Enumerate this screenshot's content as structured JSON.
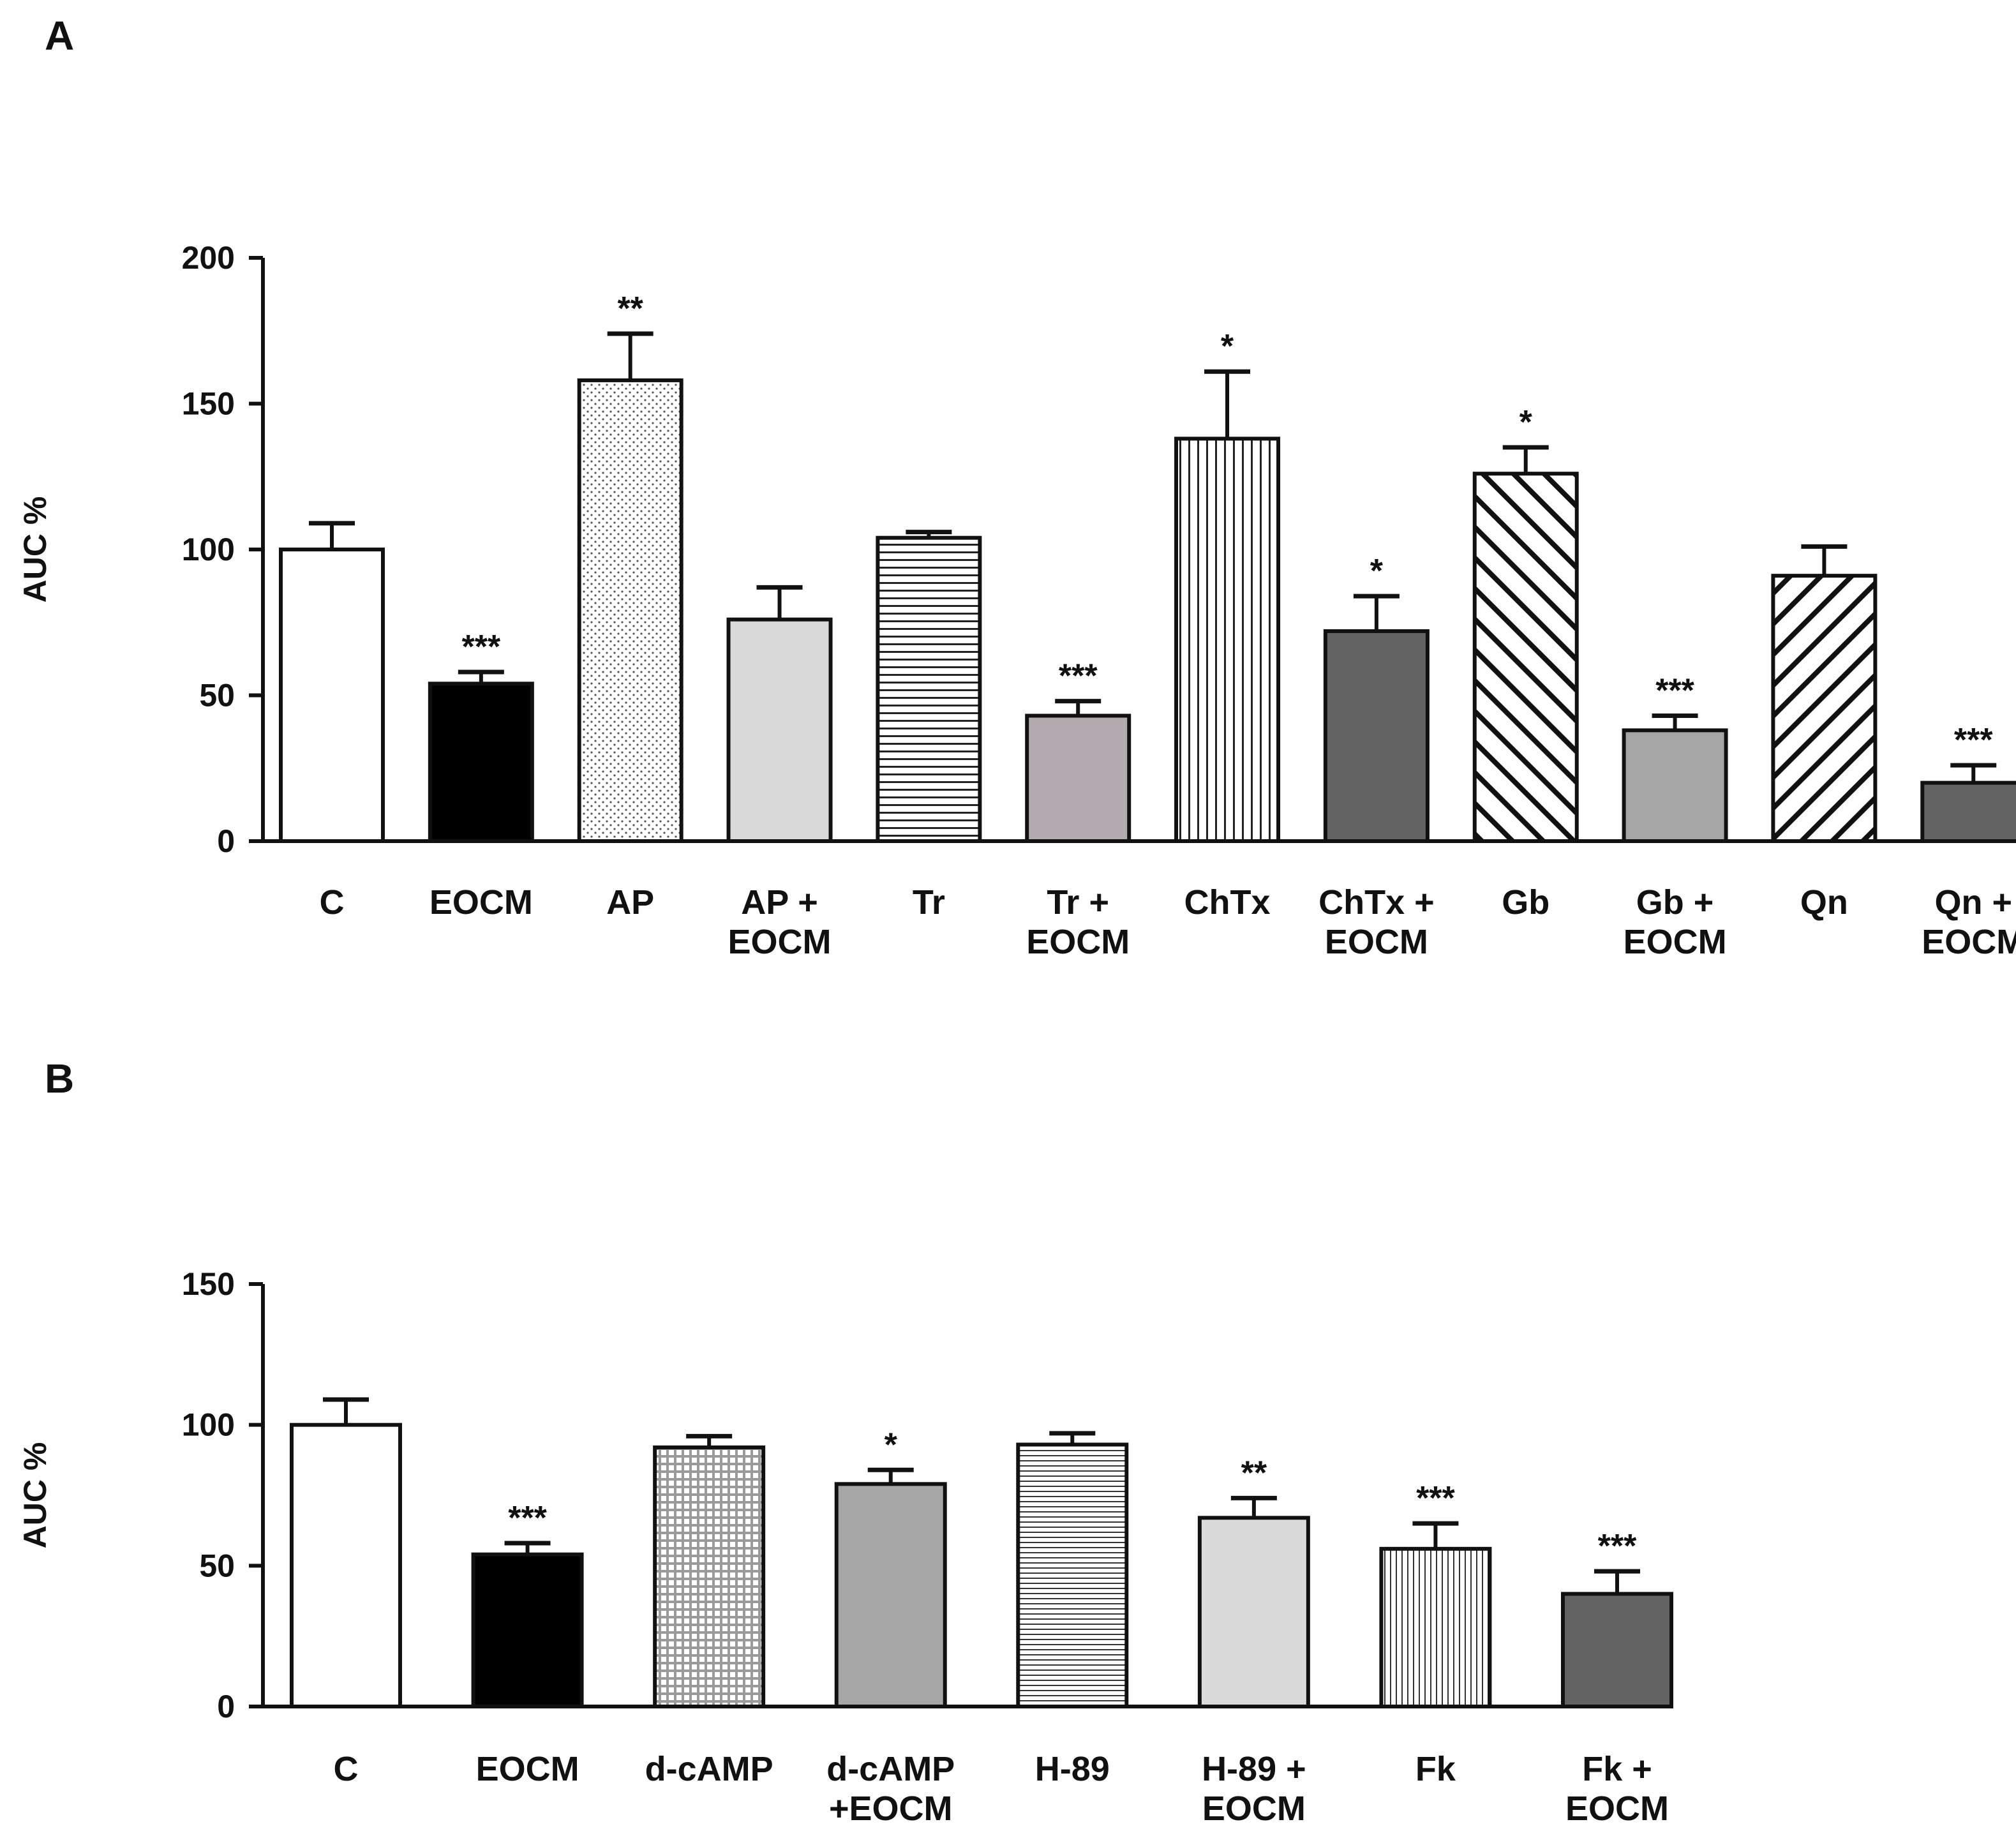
{
  "chart_data": [
    {
      "panel": "A",
      "type": "bar",
      "ylabel": "AUC %",
      "ylim": [
        0,
        200
      ],
      "yticks": [
        "0",
        "50",
        "100",
        "150",
        "200"
      ],
      "categories": [
        [
          "C"
        ],
        [
          "EOCM"
        ],
        [
          "AP"
        ],
        [
          "AP +",
          "EOCM"
        ],
        [
          "Tr"
        ],
        [
          "Tr +",
          "EOCM"
        ],
        [
          "ChTx"
        ],
        [
          "ChTx +",
          "EOCM"
        ],
        [
          "Gb"
        ],
        [
          "Gb +",
          "EOCM"
        ],
        [
          "Qn"
        ],
        [
          "Qn +",
          "EOCM"
        ]
      ],
      "values": [
        100,
        54,
        158,
        76,
        104,
        43,
        138,
        72,
        126,
        38,
        91,
        20
      ],
      "errors": [
        9,
        4,
        16,
        11,
        2,
        5,
        23,
        12,
        9,
        5,
        10,
        6
      ],
      "significance": [
        "",
        "***",
        "**",
        "",
        "",
        "***",
        "*",
        "*",
        "*",
        "***",
        "",
        "***"
      ],
      "fills": [
        "white",
        "black",
        "dots",
        "lightgray",
        "hlines",
        "mauve",
        "vlines",
        "darkgray",
        "diag-back",
        "gray",
        "diag-fwd",
        "darkgray"
      ]
    },
    {
      "panel": "B",
      "type": "bar",
      "ylabel": "AUC %",
      "ylim": [
        0,
        150
      ],
      "yticks": [
        "0",
        "50",
        "100",
        "150"
      ],
      "categories": [
        [
          "C"
        ],
        [
          "EOCM"
        ],
        [
          "d-cAMP"
        ],
        [
          "d-cAMP",
          "+EOCM"
        ],
        [
          "H-89"
        ],
        [
          "H-89 +",
          "EOCM"
        ],
        [
          "Fk"
        ],
        [
          "Fk +",
          "EOCM"
        ]
      ],
      "values": [
        100,
        54,
        92,
        79,
        93,
        67,
        56,
        40
      ],
      "errors": [
        9,
        4,
        4,
        5,
        4,
        7,
        9,
        8
      ],
      "significance": [
        "",
        "***",
        "",
        "*",
        "",
        "**",
        "***",
        "***"
      ],
      "fills": [
        "white",
        "black",
        "grid",
        "gray",
        "hlines-fine",
        "lightgray",
        "vlines-fine",
        "darkgray"
      ]
    }
  ],
  "colors": {
    "white": "#ffffff",
    "black": "#000000",
    "lightgray": "#d9d9d9",
    "mauve": "#b3abaf",
    "gray": "#a6a6a6",
    "darkgray": "#636363",
    "grid_gray": "#a3a3a3",
    "axis": "#111111"
  }
}
